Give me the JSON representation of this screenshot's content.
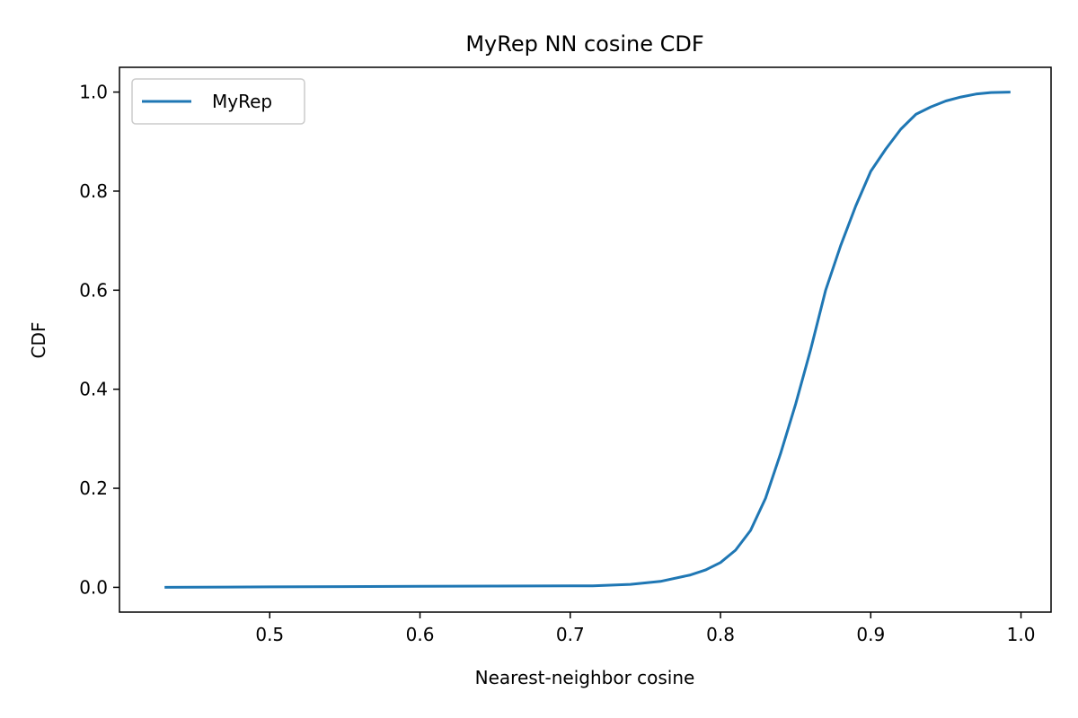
{
  "chart_data": {
    "type": "line",
    "title": "MyRep NN cosine CDF",
    "xlabel": "Nearest-neighbor cosine",
    "ylabel": "CDF",
    "xlim": [
      0.4,
      1.02
    ],
    "ylim": [
      -0.05,
      1.05
    ],
    "xticks": [
      0.5,
      0.6,
      0.7,
      0.8,
      0.9,
      1.0
    ],
    "xtick_labels": [
      "0.5",
      "0.6",
      "0.7",
      "0.8",
      "0.9",
      "1.0"
    ],
    "yticks": [
      0.0,
      0.2,
      0.4,
      0.6,
      0.8,
      1.0
    ],
    "ytick_labels": [
      "0.0",
      "0.2",
      "0.4",
      "0.6",
      "0.8",
      "1.0"
    ],
    "grid": false,
    "legend_position": "top-left",
    "series": [
      {
        "name": "MyRep",
        "color": "#1f77b4",
        "x": [
          0.43,
          0.5,
          0.6,
          0.7,
          0.715,
          0.74,
          0.76,
          0.78,
          0.79,
          0.8,
          0.81,
          0.82,
          0.83,
          0.84,
          0.85,
          0.86,
          0.87,
          0.88,
          0.89,
          0.9,
          0.91,
          0.92,
          0.93,
          0.94,
          0.95,
          0.96,
          0.97,
          0.98,
          0.993
        ],
        "y": [
          0.0,
          0.001,
          0.002,
          0.003,
          0.003,
          0.006,
          0.012,
          0.025,
          0.035,
          0.05,
          0.075,
          0.115,
          0.18,
          0.27,
          0.37,
          0.48,
          0.6,
          0.69,
          0.77,
          0.84,
          0.885,
          0.925,
          0.955,
          0.97,
          0.982,
          0.99,
          0.996,
          0.999,
          1.0
        ]
      }
    ]
  }
}
